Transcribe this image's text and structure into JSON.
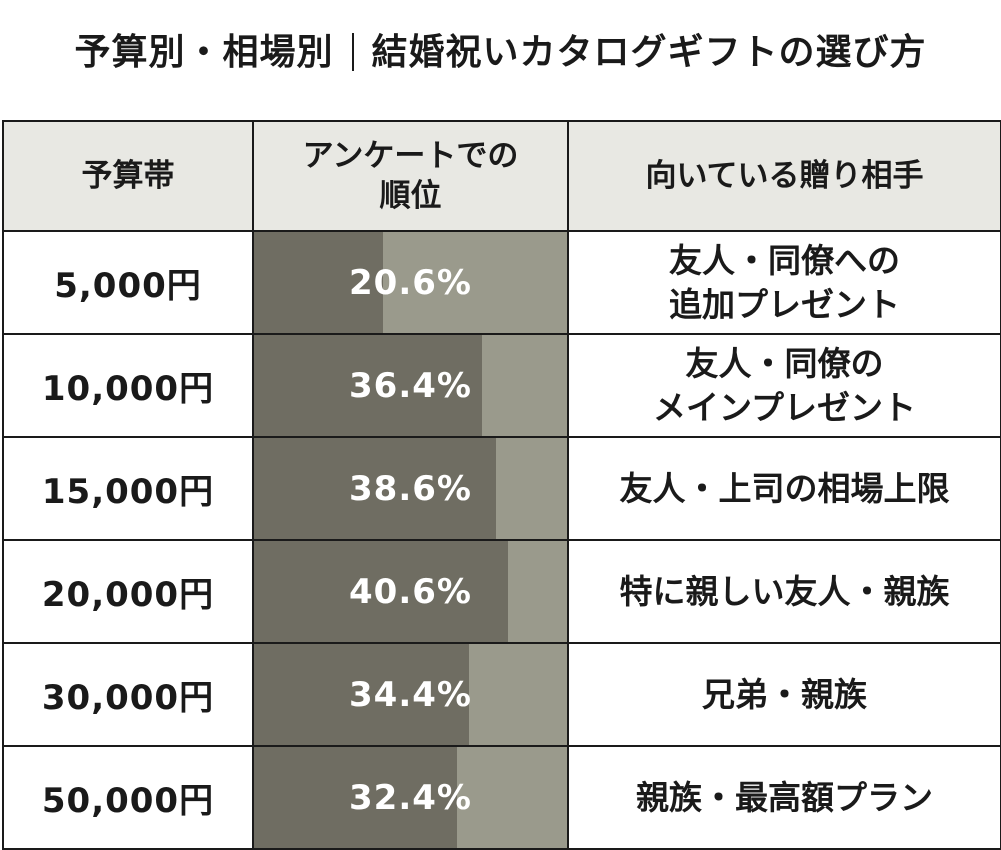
{
  "title": {
    "left": "予算別・相場別",
    "right": "結婚祝いカタログギフトの選び方"
  },
  "colors": {
    "header_bg": "#e8e8e3",
    "bar_fill": "#6f6d62",
    "bar_track": "#9a9a8c",
    "border": "#1a1a1a"
  },
  "chart_data": {
    "type": "table",
    "scale_max_percent": 50,
    "columns": [
      "予算帯",
      "アンケートでの順位",
      "向いている贈り相手"
    ],
    "column_lines": [
      [
        "予算帯"
      ],
      [
        "アンケートでの",
        "順位"
      ],
      [
        "向いている贈り相手"
      ]
    ],
    "rows": [
      {
        "budget": "5,000円",
        "percent": 20.6,
        "percent_label": "20.6%",
        "target_lines": [
          "友人・同僚への",
          "追加プレゼント"
        ]
      },
      {
        "budget": "10,000円",
        "percent": 36.4,
        "percent_label": "36.4%",
        "target_lines": [
          "友人・同僚の",
          "メインプレゼント"
        ]
      },
      {
        "budget": "15,000円",
        "percent": 38.6,
        "percent_label": "38.6%",
        "target_lines": [
          "友人・上司の相場上限"
        ]
      },
      {
        "budget": "20,000円",
        "percent": 40.6,
        "percent_label": "40.6%",
        "target_lines": [
          "特に親しい友人・親族"
        ]
      },
      {
        "budget": "30,000円",
        "percent": 34.4,
        "percent_label": "34.4%",
        "target_lines": [
          "兄弟・親族"
        ]
      },
      {
        "budget": "50,000円",
        "percent": 32.4,
        "percent_label": "32.4%",
        "target_lines": [
          "親族・最高額プラン"
        ]
      }
    ]
  }
}
